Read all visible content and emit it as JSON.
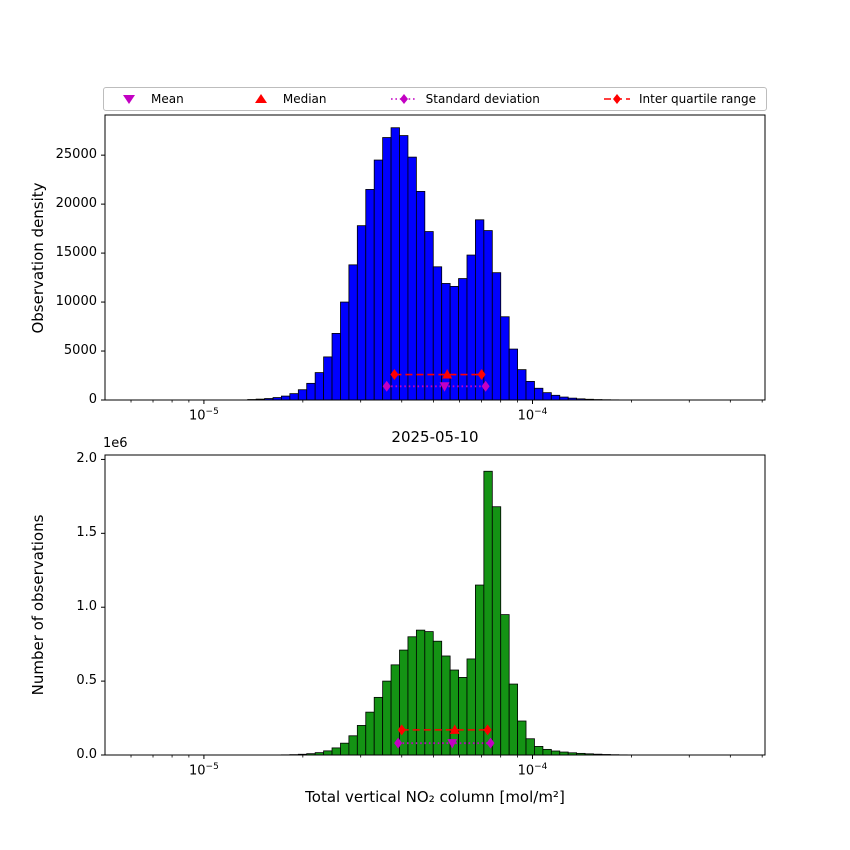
{
  "title": "2025-05-10",
  "xlabel": "Total vertical NO₂ column [mol/m²]",
  "legend": {
    "items": [
      {
        "label": "Mean",
        "marker": "triangle-down",
        "color": "#c300c3",
        "linestyle": "none"
      },
      {
        "label": "Median",
        "marker": "triangle-up",
        "color": "#ff0000",
        "linestyle": "none"
      },
      {
        "label": "Standard deviation",
        "marker": "diamond",
        "color": "#c300c3",
        "linestyle": "dotted"
      },
      {
        "label": "Inter quartile range",
        "marker": "diamond",
        "color": "#ff0000",
        "linestyle": "dashed"
      }
    ]
  },
  "chart_data": [
    {
      "type": "bar",
      "name": "observation-density-histogram",
      "ylabel": "Observation density",
      "bar_color": "#0000ff",
      "edge_color": "#000000",
      "x_scale": "log",
      "xlim": [
        5e-06,
        0.00051
      ],
      "ylim": [
        0,
        29100
      ],
      "ytick_values": [
        0,
        5000,
        10000,
        15000,
        20000,
        25000
      ],
      "ytick_labels": [
        "0",
        "5000",
        "10000",
        "15000",
        "20000",
        "25000"
      ],
      "xtick_values": [
        1e-05,
        0.0001
      ],
      "xtick_exponents": [
        "−5",
        "−4"
      ],
      "bin_log10_halfwidth": 0.01285,
      "bin_centers": [
        1.4e-05,
        1.485e-05,
        1.576e-05,
        1.672e-05,
        1.773e-05,
        1.881e-05,
        1.996e-05,
        2.117e-05,
        2.246e-05,
        2.383e-05,
        2.528e-05,
        2.682e-05,
        2.845e-05,
        3.018e-05,
        3.202e-05,
        3.397e-05,
        3.604e-05,
        3.823e-05,
        4.056e-05,
        4.303e-05,
        4.565e-05,
        4.843e-05,
        5.138e-05,
        5.451e-05,
        5.783e-05,
        6.135e-05,
        6.508e-05,
        6.904e-05,
        7.325e-05,
        7.771e-05,
        8.244e-05,
        8.746e-05,
        9.278e-05,
        9.843e-05,
        0.00010442,
        0.00011078,
        0.00011752,
        0.00012468,
        0.00013227,
        0.00014032,
        0.00014886,
        0.00015793,
        0.00016754,
        0.00017774,
        0.00018856
      ],
      "counts": [
        50,
        90,
        150,
        250,
        400,
        650,
        1050,
        1700,
        2800,
        4400,
        6800,
        10000,
        13800,
        17800,
        21500,
        24500,
        26800,
        27800,
        27000,
        24800,
        21300,
        17200,
        13600,
        11900,
        11600,
        12400,
        14800,
        18400,
        17300,
        13000,
        8500,
        5200,
        3100,
        1900,
        1200,
        750,
        480,
        300,
        190,
        120,
        75,
        45,
        28,
        16,
        8
      ],
      "markers": {
        "iqr": {
          "x1": 3.8e-05,
          "x2": 7e-05,
          "y": 2600,
          "color": "#ff0000",
          "linestyle": "dashed"
        },
        "median": {
          "x": 5.5e-05,
          "y": 2600,
          "color": "#ff0000",
          "marker": "triangle-up"
        },
        "std": {
          "x1": 3.6e-05,
          "x2": 7.2e-05,
          "y": 1400,
          "color": "#c300c3",
          "linestyle": "dotted"
        },
        "mean": {
          "x": 5.4e-05,
          "y": 1400,
          "color": "#c300c3",
          "marker": "triangle-down"
        }
      }
    },
    {
      "type": "bar",
      "name": "number-of-observations-histogram",
      "ylabel": "Number of observations",
      "offset_text": "1e6",
      "bar_color": "#149314",
      "edge_color": "#000000",
      "x_scale": "log",
      "xlim": [
        5e-06,
        0.00051
      ],
      "ylim": [
        0,
        2030000
      ],
      "ytick_values": [
        0,
        500000,
        1000000,
        1500000,
        2000000
      ],
      "ytick_labels": [
        "0.0",
        "0.5",
        "1.0",
        "1.5",
        "2.0"
      ],
      "xtick_values": [
        1e-05,
        0.0001
      ],
      "xtick_exponents": [
        "−5",
        "−4"
      ],
      "bin_log10_halfwidth": 0.01285,
      "bin_centers": [
        1.4e-05,
        1.485e-05,
        1.576e-05,
        1.672e-05,
        1.773e-05,
        1.881e-05,
        1.996e-05,
        2.117e-05,
        2.246e-05,
        2.383e-05,
        2.528e-05,
        2.682e-05,
        2.845e-05,
        3.018e-05,
        3.202e-05,
        3.397e-05,
        3.604e-05,
        3.823e-05,
        4.056e-05,
        4.303e-05,
        4.565e-05,
        4.843e-05,
        5.138e-05,
        5.451e-05,
        5.783e-05,
        6.135e-05,
        6.508e-05,
        6.904e-05,
        7.325e-05,
        7.771e-05,
        8.244e-05,
        8.746e-05,
        9.278e-05,
        9.843e-05,
        0.00010442,
        0.00011078,
        0.00011752,
        0.00012468,
        0.00013227,
        0.00014032,
        0.00014886,
        0.00015793,
        0.00016754,
        0.00017774,
        0.00018856
      ],
      "counts": [
        0,
        0,
        300,
        600,
        1200,
        2500,
        5000,
        9000,
        16000,
        28000,
        48000,
        80000,
        130000,
        200000,
        290000,
        390000,
        500000,
        610000,
        710000,
        800000,
        845000,
        835000,
        770000,
        670000,
        575000,
        525000,
        650000,
        1150000,
        1920000,
        1680000,
        950000,
        480000,
        230000,
        110000,
        58000,
        38000,
        27000,
        20000,
        15000,
        11000,
        8000,
        5500,
        3500,
        2000,
        1000
      ],
      "markers": {
        "iqr": {
          "x1": 4e-05,
          "x2": 7.3e-05,
          "y": 170000,
          "color": "#ff0000",
          "linestyle": "dashed"
        },
        "median": {
          "x": 5.8e-05,
          "y": 170000,
          "color": "#ff0000",
          "marker": "triangle-up"
        },
        "std": {
          "x1": 3.9e-05,
          "x2": 7.45e-05,
          "y": 80000,
          "color": "#c300c3",
          "linestyle": "dotted"
        },
        "mean": {
          "x": 5.7e-05,
          "y": 80000,
          "color": "#c300c3",
          "marker": "triangle-down"
        }
      }
    }
  ]
}
